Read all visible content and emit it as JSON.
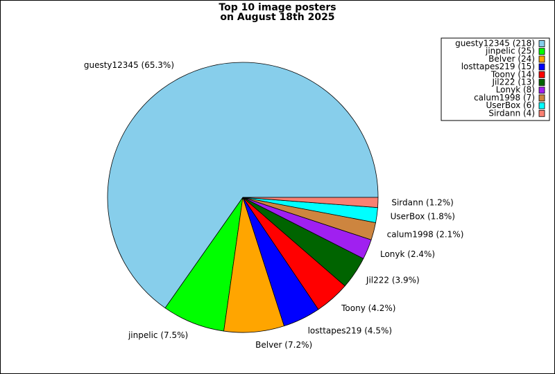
{
  "chart_data": {
    "type": "pie",
    "title": "Top 10 image posters",
    "subtitle": "on August 18th 2025",
    "categories": [
      "guesty12345",
      "jinpelic",
      "Belver",
      "losttapes219",
      "Toony",
      "Jil222",
      "Lonyk",
      "calum1998",
      "UserBox",
      "Sirdann"
    ],
    "values": [
      218,
      25,
      24,
      15,
      14,
      13,
      8,
      7,
      6,
      4
    ],
    "value_labels": [
      "guesty12345 (218)",
      "jinpelic (25)",
      "Belver (24)",
      "losttapes219 (15)",
      "Toony (14)",
      "Jil222 (13)",
      "Lonyk (8)",
      "calum1998 (7)",
      "UserBox (6)",
      "Sirdann (4)"
    ],
    "slice_labels": [
      "guesty12345 (65.3%)",
      "jinpelic (7.5%)",
      "Belver (7.2%)",
      "losttapes219 (4.5%)",
      "Toony (4.2%)",
      "Jil222 (3.9%)",
      "Lonyk (2.4%)",
      "calum1998 (2.1%)",
      "UserBox (1.8%)",
      "Sirdann (1.2%)"
    ],
    "colors": [
      "#87ceeb",
      "#00ff00",
      "#ffa500",
      "#0000ff",
      "#ff0000",
      "#006400",
      "#a020f0",
      "#cd853f",
      "#00ffff",
      "#fa8072"
    ],
    "legend": "upper right"
  }
}
